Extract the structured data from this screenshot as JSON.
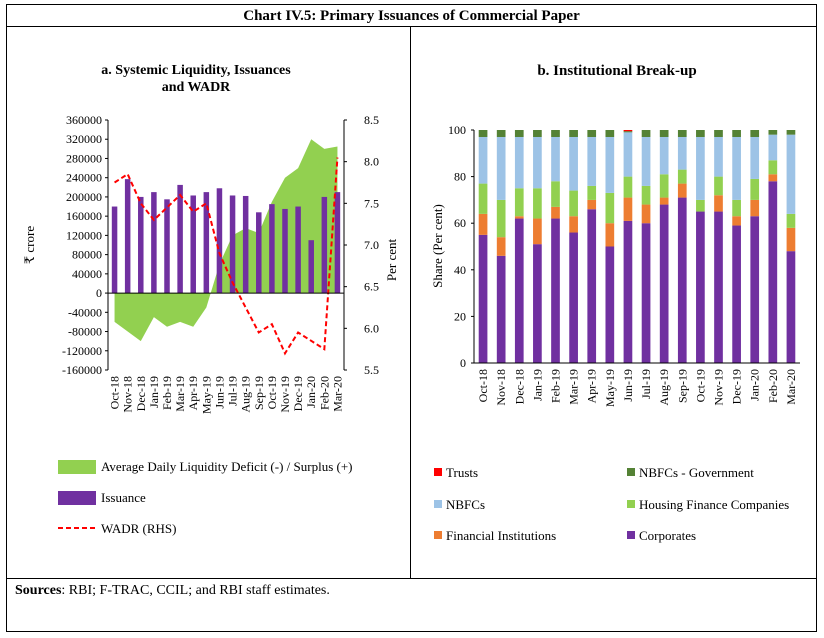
{
  "title": "Chart IV.5: Primary Issuances of Commercial Paper",
  "sources": {
    "label": "Sources",
    "text": ": RBI; F-TRAC, CCIL; and RBI staff estimates."
  },
  "colors": {
    "liquidity": "#92d050",
    "issuance": "#7030a0",
    "wadr": "#ff0000",
    "trusts": "#ff0000",
    "nbfc_govt": "#548235",
    "nbfcs": "#9dc3e6",
    "hfc": "#92d050",
    "fi": "#ed7d31",
    "corporates": "#7030a0"
  },
  "chart_data": [
    {
      "type": "bar",
      "title": "a. Systemic Liquidity, Issuances and WADR",
      "title_lines": [
        "a. Systemic Liquidity, Issuances",
        "and WADR"
      ],
      "ylabel": "₹ crore",
      "y2label": "Per cent",
      "ylim": [
        -160000,
        360000
      ],
      "y_ticks": [
        "360000",
        "320000",
        "280000",
        "240000",
        "200000",
        "160000",
        "120000",
        "80000",
        "40000",
        "0",
        "-40000",
        "-80000",
        "-120000",
        "-160000"
      ],
      "y2lim": [
        5.5,
        8.5
      ],
      "y2_ticks": [
        "8.5",
        "8.0",
        "7.5",
        "7.0",
        "6.5",
        "6.0",
        "5.5"
      ],
      "categories": [
        "Oct-18",
        "Nov-18",
        "Dec-18",
        "Jan-19",
        "Feb-19",
        "Mar-19",
        "Apr-19",
        "May-19",
        "Jun-19",
        "Jul-19",
        "Aug-19",
        "Sep-19",
        "Oct-19",
        "Nov-19",
        "Dec-19",
        "Jan-20",
        "Feb-20",
        "Mar-20"
      ],
      "series": [
        {
          "name": "Average Daily Liquidity Deficit (-) / Surplus (+)",
          "type": "area",
          "axis": "left",
          "values": [
            -60000,
            -80000,
            -100000,
            -50000,
            -70000,
            -60000,
            -70000,
            -30000,
            60000,
            120000,
            135000,
            125000,
            190000,
            240000,
            260000,
            320000,
            300000,
            305000
          ]
        },
        {
          "name": "Issuance",
          "type": "bar",
          "axis": "left",
          "values": [
            180000,
            237000,
            200000,
            210000,
            195000,
            225000,
            203000,
            210000,
            218000,
            203000,
            202000,
            168000,
            185000,
            175000,
            180000,
            110000,
            200000,
            210000
          ]
        },
        {
          "name": "WADR (RHS)",
          "type": "line",
          "axis": "right",
          "style": "dashed",
          "values": [
            7.75,
            7.85,
            7.5,
            7.3,
            7.45,
            7.6,
            7.4,
            7.5,
            6.9,
            6.55,
            6.25,
            5.95,
            6.05,
            5.7,
            5.95,
            5.85,
            5.75,
            8.05
          ]
        }
      ]
    },
    {
      "type": "bar",
      "stacked": true,
      "title": "b. Institutional Break-up",
      "ylabel": "Share (Per cent)",
      "ylim": [
        0,
        100
      ],
      "y_ticks": [
        "100",
        "80",
        "60",
        "40",
        "20",
        "0"
      ],
      "categories": [
        "Oct-18",
        "Nov-18",
        "Dec-18",
        "Jan-19",
        "Feb-19",
        "Mar-19",
        "Apr-19",
        "May-19",
        "Jun-19",
        "Jul-19",
        "Aug-19",
        "Sep-19",
        "Oct-19",
        "Nov-19",
        "Dec-19",
        "Jan-20",
        "Feb-20",
        "Mar-20"
      ],
      "series": [
        {
          "name": "Corporates",
          "values": [
            55,
            46,
            62,
            51,
            62,
            56,
            66,
            50,
            61,
            60,
            68,
            71,
            65,
            65,
            59,
            63,
            78,
            48
          ]
        },
        {
          "name": "Financial Institutions",
          "values": [
            9,
            8,
            1,
            11,
            5,
            7,
            4,
            10,
            10,
            8,
            3,
            6,
            0,
            7,
            4,
            7,
            3,
            10
          ]
        },
        {
          "name": "Housing Finance Companies",
          "values": [
            13,
            16,
            12,
            13,
            11,
            11,
            6,
            13,
            9,
            8,
            10,
            6,
            5,
            8,
            7,
            9,
            6,
            6
          ]
        },
        {
          "name": "NBFCs",
          "values": [
            20,
            27,
            22,
            22,
            19,
            23,
            21,
            24,
            19,
            21,
            16,
            14,
            27,
            17,
            27,
            18,
            11,
            34
          ]
        },
        {
          "name": "NBFCs - Government",
          "values": [
            3,
            3,
            3,
            3,
            3,
            3,
            3,
            3,
            0.5,
            3,
            3,
            3,
            3,
            3,
            3,
            3,
            2,
            2
          ]
        },
        {
          "name": "Trusts",
          "values": [
            0,
            0,
            0,
            0,
            0,
            0,
            0,
            0,
            0.5,
            0,
            0,
            0,
            0,
            0,
            0,
            0,
            0,
            0
          ]
        }
      ],
      "legend_order": [
        "Trusts",
        "NBFCs - Government",
        "NBFCs",
        "Housing Finance Companies",
        "Financial Institutions",
        "Corporates"
      ]
    }
  ]
}
